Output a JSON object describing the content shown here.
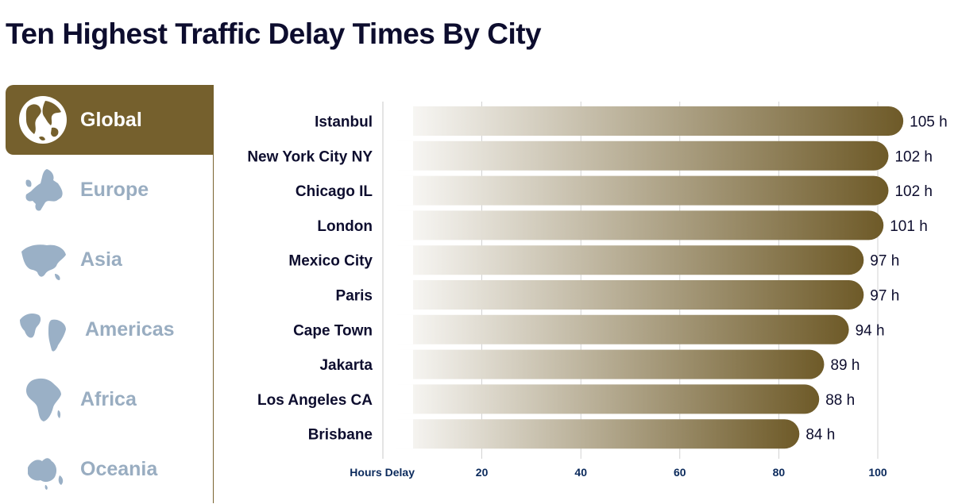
{
  "title": "Ten Highest Traffic Delay Times By City",
  "regions": [
    {
      "label": "Global",
      "active": true,
      "icon": "globe-icon"
    },
    {
      "label": "Europe",
      "active": false,
      "icon": "europe-map-icon"
    },
    {
      "label": "Asia",
      "active": false,
      "icon": "asia-map-icon"
    },
    {
      "label": "Americas",
      "active": false,
      "icon": "americas-map-icon"
    },
    {
      "label": "Africa",
      "active": false,
      "icon": "africa-map-icon"
    },
    {
      "label": "Oceania",
      "active": false,
      "icon": "oceania-map-icon"
    }
  ],
  "colors": {
    "accent": "#75602d",
    "bar_start": "#ffffff",
    "bar_end": "#6e5a28",
    "inactive_text": "#99adc1",
    "title_text": "#0d0d2e",
    "axis_text": "#0b2a5c"
  },
  "chart_data": {
    "type": "bar",
    "orientation": "horizontal",
    "categories": [
      "Istanbul",
      "New York City NY",
      "Chicago IL",
      "London",
      "Mexico City",
      "Paris",
      "Cape Town",
      "Jakarta",
      "Los Angeles CA",
      "Brisbane"
    ],
    "values": [
      105,
      102,
      102,
      101,
      97,
      97,
      94,
      89,
      88,
      84
    ],
    "value_labels": [
      "105 h",
      "102 h",
      "102 h",
      "101 h",
      "97 h",
      "97 h",
      "94 h",
      "89 h",
      "88 h",
      "84 h"
    ],
    "xlabel": "Hours Delay",
    "xticks": [
      20,
      40,
      60,
      80,
      100
    ],
    "xlim": [
      0,
      105
    ],
    "grid": true
  }
}
